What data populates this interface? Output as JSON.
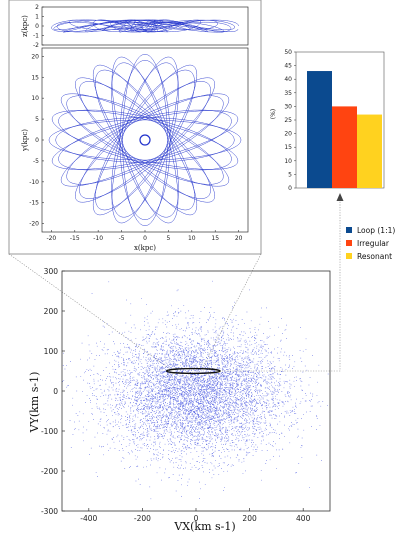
{
  "chart_data": [
    {
      "type": "line",
      "panel": "orbit-xz",
      "xlabel": "",
      "ylabel": "z(kpc)",
      "xlim": [
        -22,
        22
      ],
      "ylim": [
        -2,
        2
      ],
      "yticks": [
        "2",
        "1",
        "0",
        "-1",
        "-2"
      ],
      "grid": false,
      "series_color": "#2233cc"
    },
    {
      "type": "line",
      "panel": "orbit-xy",
      "xlabel": "x(kpc)",
      "ylabel": "y(kpc)",
      "xlim": [
        -22,
        22
      ],
      "ylim": [
        -22,
        22
      ],
      "xticks": [
        "-20",
        "-15",
        "-10",
        "-5",
        "0",
        "5",
        "10",
        "15",
        "20"
      ],
      "yticks": [
        "20",
        "15",
        "10",
        "5",
        "0",
        "-5",
        "-10",
        "-15",
        "-20"
      ],
      "grid": false,
      "series_color": "#2233cc"
    },
    {
      "type": "bar",
      "panel": "orbit-fractions",
      "ylabel": "(%)",
      "ylim": [
        0,
        50
      ],
      "yticks": [
        "50",
        "45",
        "40",
        "35",
        "30",
        "25",
        "20",
        "15",
        "10",
        "5",
        "0"
      ],
      "categories": [
        "Loop (1:1)",
        "Irregular",
        "Resonant"
      ],
      "values": [
        43,
        30,
        27
      ],
      "colors": [
        "#0b4a8f",
        "#ff4411",
        "#ffd21f"
      ],
      "legend_position": "below"
    },
    {
      "type": "scatter",
      "panel": "velocity-space",
      "xlabel": "VX(km s-1)",
      "ylabel": "VY(km s-1)",
      "xlim": [
        -500,
        500
      ],
      "ylim": [
        -300,
        300
      ],
      "xticks": [
        "-400",
        "-200",
        "0",
        "200",
        "400"
      ],
      "yticks": [
        "300",
        "200",
        "100",
        "0",
        "-100",
        "-200",
        "-300"
      ],
      "point_color": "#3344dd",
      "highlight_ellipse": {
        "cx": -10,
        "cy": 50,
        "rx": 100,
        "ry": 6
      }
    }
  ],
  "legend": [
    "Loop (1:1)",
    "Irregular",
    "Resonant"
  ]
}
